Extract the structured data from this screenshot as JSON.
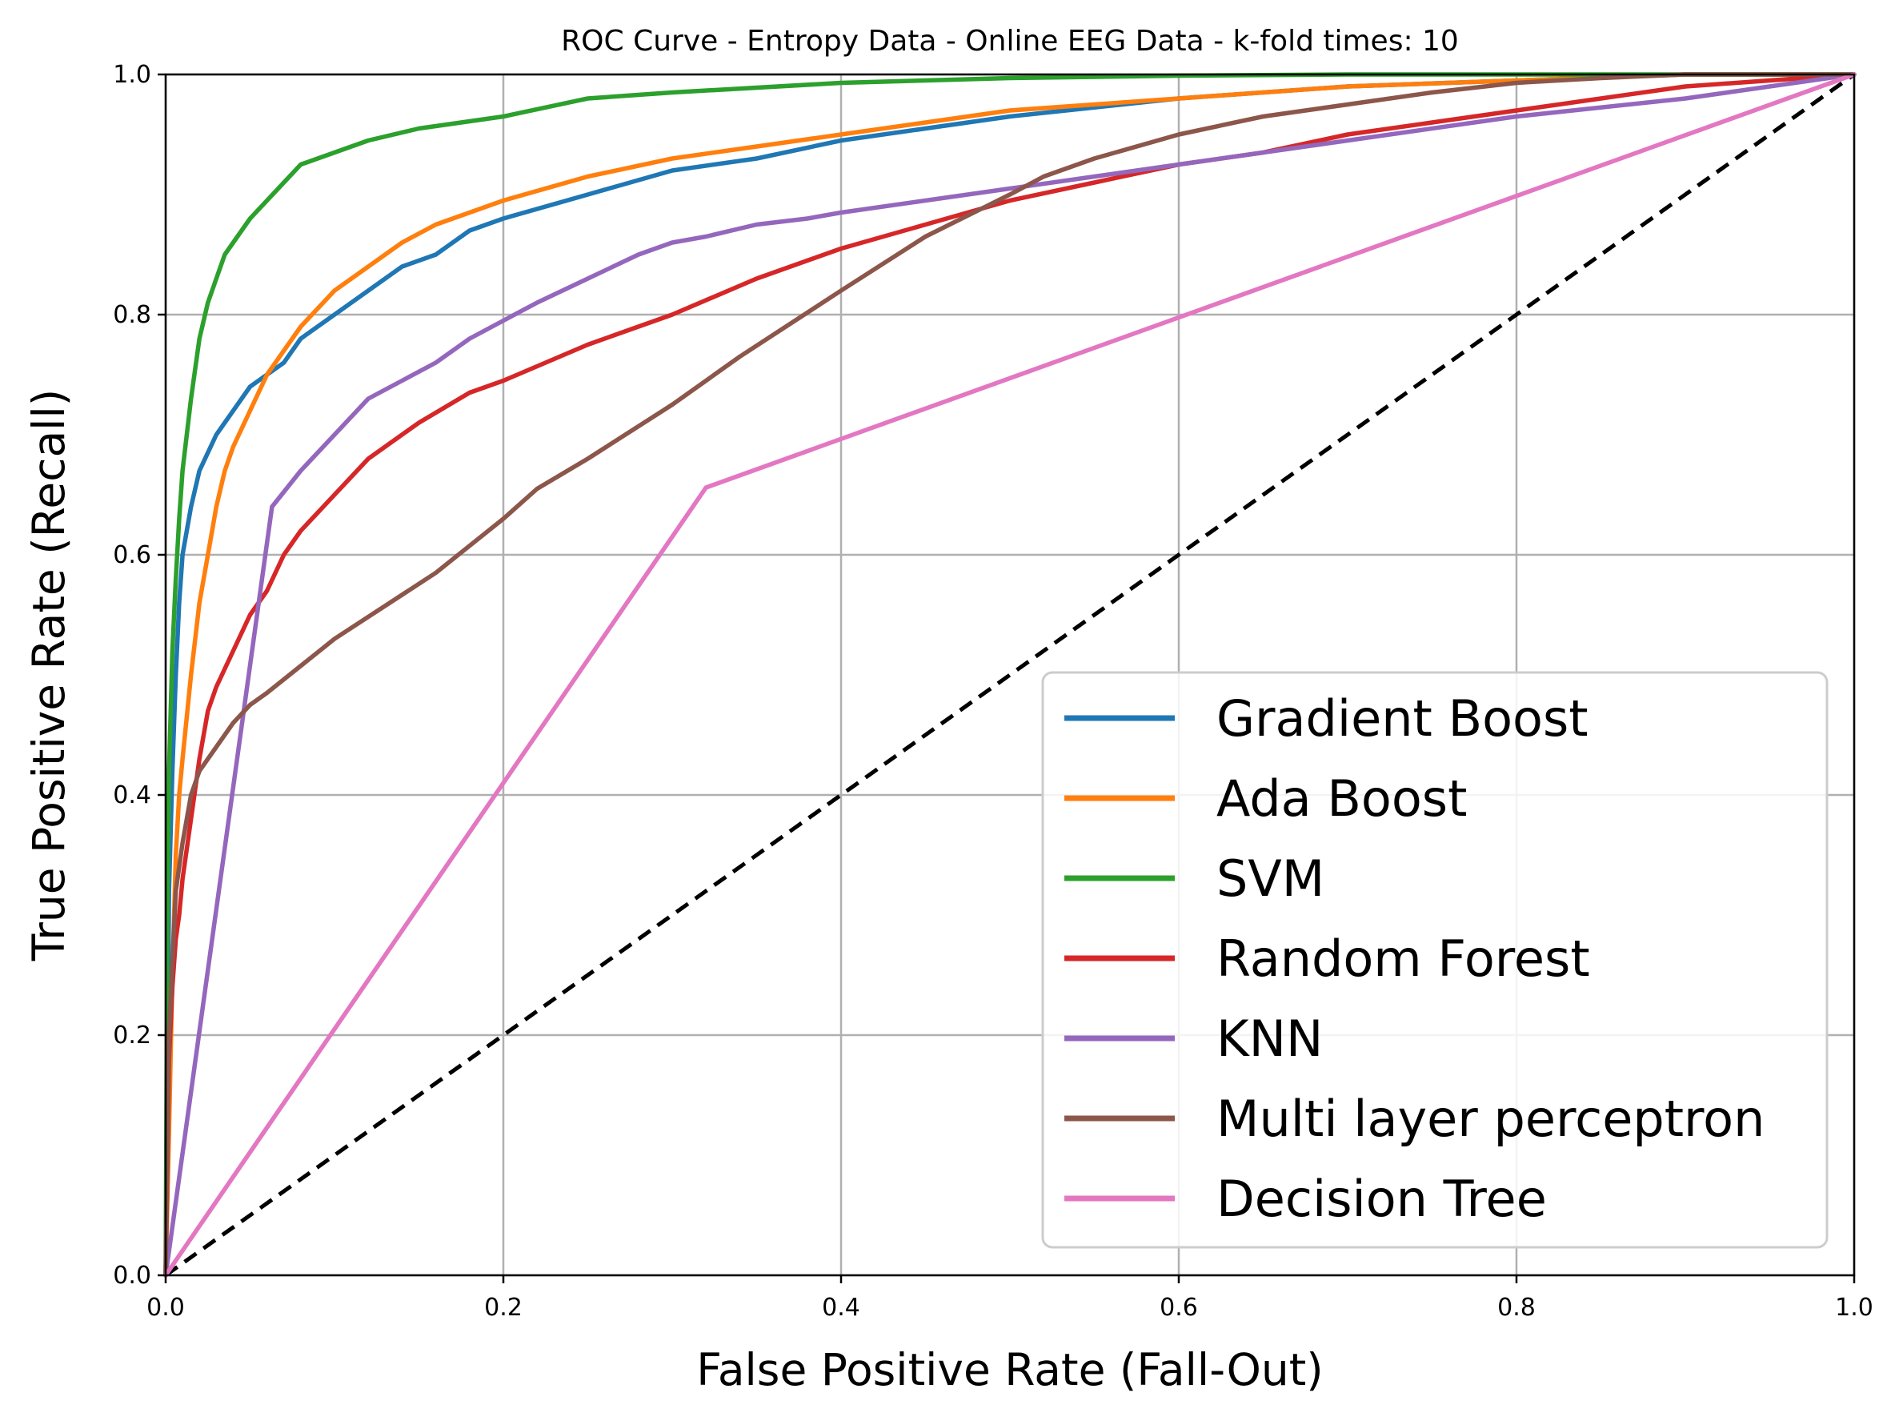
{
  "chart_data": {
    "type": "line",
    "title": "ROC Curve - Entropy Data - Online EEG Data - k-fold times: 10",
    "xlabel": "False Positive Rate (Fall-Out)",
    "ylabel": "True Positive Rate (Recall)",
    "xlim": [
      0.0,
      1.0
    ],
    "ylim": [
      0.0,
      1.0
    ],
    "xticks": [
      "0.0",
      "0.2",
      "0.4",
      "0.6",
      "0.8",
      "1.0"
    ],
    "yticks": [
      "0.0",
      "0.2",
      "0.4",
      "0.6",
      "0.8",
      "1.0"
    ],
    "grid": true,
    "legend_position": "lower-right",
    "series": [
      {
        "name": "Gradient Boost",
        "color": "#1f77b4",
        "x": [
          0,
          0.001,
          0.002,
          0.004,
          0.006,
          0.008,
          0.01,
          0.015,
          0.02,
          0.03,
          0.04,
          0.05,
          0.06,
          0.07,
          0.08,
          0.1,
          0.12,
          0.14,
          0.16,
          0.18,
          0.2,
          0.25,
          0.3,
          0.35,
          0.4,
          0.45,
          0.5,
          0.6,
          0.7,
          0.8,
          0.9,
          1.0
        ],
        "y": [
          0,
          0.15,
          0.32,
          0.42,
          0.5,
          0.56,
          0.6,
          0.64,
          0.67,
          0.7,
          0.72,
          0.74,
          0.75,
          0.76,
          0.78,
          0.8,
          0.82,
          0.84,
          0.85,
          0.87,
          0.88,
          0.9,
          0.92,
          0.93,
          0.945,
          0.955,
          0.965,
          0.98,
          0.99,
          0.995,
          1.0,
          1.0
        ]
      },
      {
        "name": "Ada Boost",
        "color": "#ff7f0e",
        "x": [
          0,
          0.002,
          0.004,
          0.006,
          0.008,
          0.01,
          0.015,
          0.02,
          0.025,
          0.03,
          0.035,
          0.04,
          0.05,
          0.06,
          0.07,
          0.08,
          0.1,
          0.12,
          0.14,
          0.16,
          0.18,
          0.2,
          0.25,
          0.3,
          0.35,
          0.4,
          0.45,
          0.5,
          0.6,
          0.7,
          0.8,
          0.9,
          1.0
        ],
        "y": [
          0,
          0.12,
          0.25,
          0.35,
          0.4,
          0.43,
          0.5,
          0.56,
          0.6,
          0.64,
          0.67,
          0.69,
          0.72,
          0.75,
          0.77,
          0.79,
          0.82,
          0.84,
          0.86,
          0.875,
          0.885,
          0.895,
          0.915,
          0.93,
          0.94,
          0.95,
          0.96,
          0.97,
          0.98,
          0.99,
          0.995,
          1.0,
          1.0
        ]
      },
      {
        "name": "SVM",
        "color": "#2ca02c",
        "x": [
          0,
          0.001,
          0.002,
          0.004,
          0.006,
          0.008,
          0.01,
          0.015,
          0.02,
          0.025,
          0.03,
          0.035,
          0.04,
          0.05,
          0.06,
          0.07,
          0.08,
          0.1,
          0.12,
          0.15,
          0.2,
          0.25,
          0.3,
          0.4,
          0.5,
          0.6,
          0.7,
          0.8,
          0.9,
          1.0
        ],
        "y": [
          0,
          0.3,
          0.42,
          0.52,
          0.58,
          0.63,
          0.67,
          0.73,
          0.78,
          0.81,
          0.83,
          0.85,
          0.86,
          0.88,
          0.895,
          0.91,
          0.925,
          0.935,
          0.945,
          0.955,
          0.965,
          0.98,
          0.985,
          0.993,
          0.997,
          0.999,
          1.0,
          1.0,
          1.0,
          1.0
        ]
      },
      {
        "name": "Random Forest",
        "color": "#d62728",
        "x": [
          0,
          0.002,
          0.004,
          0.006,
          0.008,
          0.01,
          0.015,
          0.02,
          0.025,
          0.03,
          0.04,
          0.05,
          0.06,
          0.07,
          0.08,
          0.1,
          0.12,
          0.15,
          0.18,
          0.2,
          0.25,
          0.3,
          0.35,
          0.4,
          0.45,
          0.5,
          0.55,
          0.6,
          0.65,
          0.7,
          0.75,
          0.8,
          0.85,
          0.9,
          0.95,
          1.0
        ],
        "y": [
          0,
          0.18,
          0.24,
          0.28,
          0.3,
          0.33,
          0.38,
          0.43,
          0.47,
          0.49,
          0.52,
          0.55,
          0.57,
          0.6,
          0.62,
          0.65,
          0.68,
          0.71,
          0.735,
          0.745,
          0.775,
          0.8,
          0.83,
          0.855,
          0.875,
          0.895,
          0.91,
          0.925,
          0.935,
          0.95,
          0.96,
          0.97,
          0.98,
          0.99,
          0.995,
          1.0
        ]
      },
      {
        "name": "KNN",
        "color": "#9467bd",
        "x": [
          0,
          0.063,
          0.08,
          0.1,
          0.12,
          0.14,
          0.16,
          0.18,
          0.2,
          0.22,
          0.25,
          0.28,
          0.3,
          0.32,
          0.35,
          0.38,
          0.4,
          0.5,
          0.6,
          0.7,
          0.8,
          0.9,
          1.0
        ],
        "y": [
          0,
          0.64,
          0.67,
          0.7,
          0.73,
          0.745,
          0.76,
          0.78,
          0.795,
          0.81,
          0.83,
          0.85,
          0.86,
          0.865,
          0.875,
          0.88,
          0.885,
          0.905,
          0.925,
          0.945,
          0.965,
          0.98,
          1.0
        ]
      },
      {
        "name": "Multi layer perceptron",
        "color": "#8c564b",
        "x": [
          0,
          0.002,
          0.004,
          0.006,
          0.01,
          0.015,
          0.02,
          0.03,
          0.04,
          0.05,
          0.06,
          0.1,
          0.16,
          0.2,
          0.22,
          0.25,
          0.3,
          0.34,
          0.4,
          0.45,
          0.5,
          0.52,
          0.55,
          0.6,
          0.65,
          0.7,
          0.75,
          0.8,
          0.85,
          0.9,
          0.95,
          1.0
        ],
        "y": [
          0,
          0.2,
          0.26,
          0.32,
          0.36,
          0.4,
          0.42,
          0.44,
          0.46,
          0.475,
          0.485,
          0.53,
          0.585,
          0.63,
          0.655,
          0.68,
          0.725,
          0.765,
          0.82,
          0.865,
          0.9,
          0.915,
          0.93,
          0.95,
          0.965,
          0.975,
          0.985,
          0.993,
          0.997,
          1.0,
          1.0,
          1.0
        ]
      },
      {
        "name": "Decision Tree",
        "color": "#e377c2",
        "x": [
          0,
          0.32,
          1.0
        ],
        "y": [
          0,
          0.656,
          1.0
        ]
      }
    ],
    "reference_line": {
      "style": "dashed",
      "color": "#000000",
      "x": [
        0,
        1
      ],
      "y": [
        0,
        1
      ]
    }
  }
}
